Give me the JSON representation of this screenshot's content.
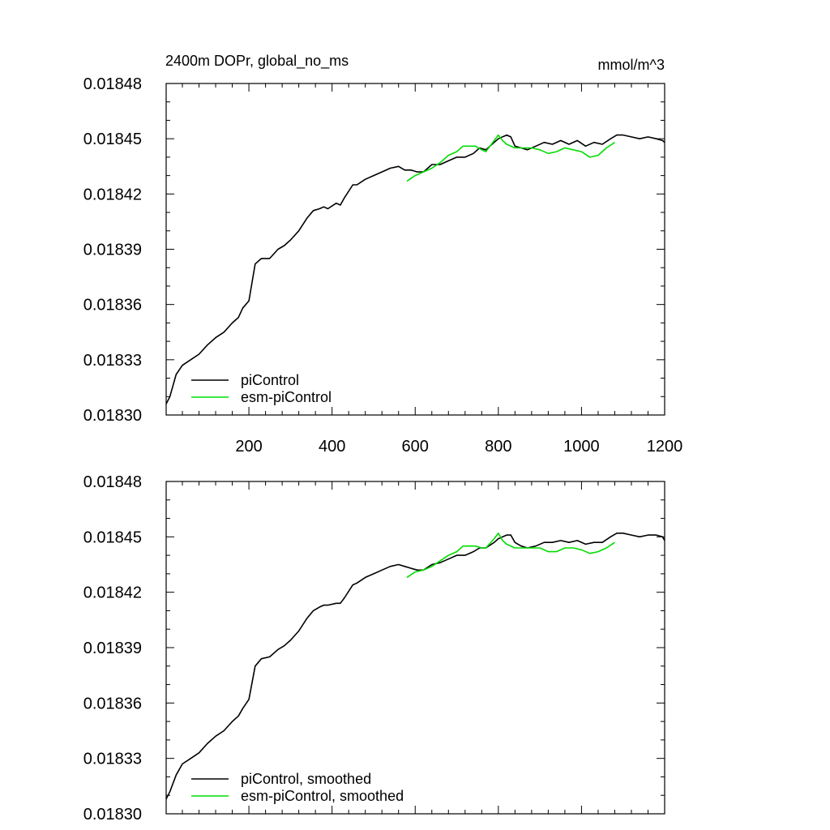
{
  "colors": {
    "piControl": "#000000",
    "esm_piControl": "#00dd00",
    "axis": "#000000"
  },
  "chart_data": [
    {
      "type": "line",
      "title_left": "2400m DOPr, global_no_ms",
      "title_right": "mmol/m^3",
      "xlim": [
        1,
        1200
      ],
      "ylim": [
        0.0183,
        0.01848
      ],
      "yticks": [
        0.0183,
        0.01833,
        0.01836,
        0.01839,
        0.01842,
        0.01845,
        0.01848
      ],
      "ytick_labels": [
        "0.01830",
        "0.01833",
        "0.01836",
        "0.01839",
        "0.01842",
        "0.01845",
        "0.01848"
      ],
      "xticks": [
        200,
        400,
        600,
        800,
        1000,
        1200
      ],
      "xtick_labels": [
        "200",
        "400",
        "600",
        "800",
        "1000",
        "1200"
      ],
      "legend_position": "bottom-left",
      "series": [
        {
          "name": "piControl",
          "color": "#000000",
          "x": [
            1,
            10,
            25,
            40,
            60,
            80,
            100,
            120,
            140,
            160,
            175,
            185,
            200,
            215,
            230,
            250,
            270,
            285,
            300,
            320,
            340,
            355,
            370,
            380,
            390,
            410,
            420,
            430,
            450,
            460,
            480,
            500,
            520,
            540,
            560,
            575,
            590,
            605,
            620,
            640,
            660,
            680,
            700,
            720,
            740,
            755,
            770,
            790,
            800,
            820,
            830,
            840,
            855,
            870,
            890,
            910,
            930,
            950,
            970,
            990,
            1010,
            1030,
            1050,
            1070,
            1085,
            1100,
            1120,
            1140,
            1160,
            1180,
            1195,
            1200
          ],
          "values": [
            0.018306,
            0.01831,
            0.018322,
            0.018327,
            0.01833,
            0.018333,
            0.018338,
            0.018342,
            0.018345,
            0.01835,
            0.018353,
            0.018358,
            0.018362,
            0.018382,
            0.018385,
            0.018385,
            0.01839,
            0.018392,
            0.018395,
            0.0184,
            0.018407,
            0.018411,
            0.018412,
            0.018413,
            0.018412,
            0.018415,
            0.018414,
            0.018418,
            0.018425,
            0.018425,
            0.018428,
            0.01843,
            0.018432,
            0.018434,
            0.018435,
            0.018433,
            0.018433,
            0.018432,
            0.018432,
            0.018436,
            0.018436,
            0.018438,
            0.01844,
            0.01844,
            0.018442,
            0.018445,
            0.018444,
            0.018448,
            0.01845,
            0.018452,
            0.018451,
            0.018446,
            0.018445,
            0.018444,
            0.018446,
            0.018448,
            0.018447,
            0.018449,
            0.018447,
            0.018449,
            0.018446,
            0.018448,
            0.018447,
            0.01845,
            0.018452,
            0.018452,
            0.018451,
            0.01845,
            0.018451,
            0.01845,
            0.018449,
            0.018448
          ]
        },
        {
          "name": "esm-piControl",
          "color": "#00dd00",
          "x": [
            580,
            600,
            620,
            640,
            660,
            680,
            700,
            715,
            730,
            745,
            760,
            770,
            790,
            800,
            810,
            820,
            840,
            860,
            880,
            900,
            920,
            940,
            960,
            980,
            1000,
            1020,
            1040,
            1060,
            1080
          ],
          "values": [
            0.018427,
            0.01843,
            0.018432,
            0.018434,
            0.018437,
            0.018441,
            0.018443,
            0.018446,
            0.018446,
            0.018446,
            0.018444,
            0.018443,
            0.018449,
            0.018452,
            0.018449,
            0.018447,
            0.018445,
            0.018445,
            0.018445,
            0.018444,
            0.018442,
            0.018443,
            0.018445,
            0.018444,
            0.018443,
            0.01844,
            0.018441,
            0.018445,
            0.018448
          ]
        }
      ]
    },
    {
      "type": "line",
      "xlim": [
        1,
        1200
      ],
      "ylim": [
        0.0183,
        0.01848
      ],
      "yticks": [
        0.0183,
        0.01833,
        0.01836,
        0.01839,
        0.01842,
        0.01845,
        0.01848
      ],
      "ytick_labels": [
        "0.01830",
        "0.01833",
        "0.01836",
        "0.01839",
        "0.01842",
        "0.01845",
        "0.01848"
      ],
      "xticks": [
        200,
        400,
        600,
        800,
        1000,
        1200
      ],
      "legend_position": "bottom-left",
      "series": [
        {
          "name": "piControl, smoothed",
          "color": "#000000",
          "x": [
            1,
            10,
            25,
            40,
            60,
            80,
            100,
            120,
            140,
            160,
            175,
            185,
            200,
            215,
            230,
            250,
            270,
            285,
            300,
            320,
            340,
            355,
            370,
            380,
            390,
            410,
            420,
            430,
            450,
            460,
            480,
            500,
            520,
            540,
            560,
            575,
            590,
            605,
            620,
            640,
            660,
            680,
            700,
            720,
            740,
            755,
            770,
            790,
            800,
            820,
            830,
            840,
            855,
            870,
            890,
            910,
            930,
            950,
            970,
            990,
            1010,
            1030,
            1050,
            1070,
            1085,
            1100,
            1120,
            1140,
            1160,
            1180,
            1195,
            1200
          ],
          "values": [
            0.018308,
            0.018312,
            0.018321,
            0.018327,
            0.01833,
            0.018333,
            0.018338,
            0.018342,
            0.018345,
            0.01835,
            0.018353,
            0.018357,
            0.018362,
            0.01838,
            0.018384,
            0.018385,
            0.018389,
            0.018391,
            0.018394,
            0.018399,
            0.018406,
            0.01841,
            0.018412,
            0.018413,
            0.018413,
            0.018414,
            0.018414,
            0.018417,
            0.018424,
            0.018425,
            0.018428,
            0.01843,
            0.018432,
            0.018434,
            0.018435,
            0.018434,
            0.018433,
            0.018432,
            0.018432,
            0.018435,
            0.018436,
            0.018438,
            0.01844,
            0.01844,
            0.018442,
            0.018444,
            0.018444,
            0.018447,
            0.018449,
            0.018451,
            0.018451,
            0.018447,
            0.018445,
            0.018444,
            0.018445,
            0.018447,
            0.018447,
            0.018448,
            0.018447,
            0.018448,
            0.018446,
            0.018447,
            0.018447,
            0.01845,
            0.018452,
            0.018452,
            0.018451,
            0.01845,
            0.018451,
            0.018451,
            0.01845,
            0.018448
          ]
        },
        {
          "name": "esm-piControl, smoothed",
          "color": "#00dd00",
          "x": [
            580,
            600,
            620,
            640,
            660,
            680,
            700,
            715,
            730,
            745,
            760,
            770,
            790,
            800,
            810,
            820,
            840,
            860,
            880,
            900,
            920,
            940,
            960,
            980,
            1000,
            1020,
            1040,
            1060,
            1080
          ],
          "values": [
            0.018428,
            0.018431,
            0.018432,
            0.018434,
            0.018437,
            0.01844,
            0.018442,
            0.018445,
            0.018445,
            0.018445,
            0.018444,
            0.018444,
            0.018449,
            0.018452,
            0.018448,
            0.018446,
            0.018444,
            0.018444,
            0.018444,
            0.018444,
            0.018442,
            0.018442,
            0.018444,
            0.018444,
            0.018443,
            0.018441,
            0.018442,
            0.018444,
            0.018447
          ]
        }
      ]
    }
  ]
}
